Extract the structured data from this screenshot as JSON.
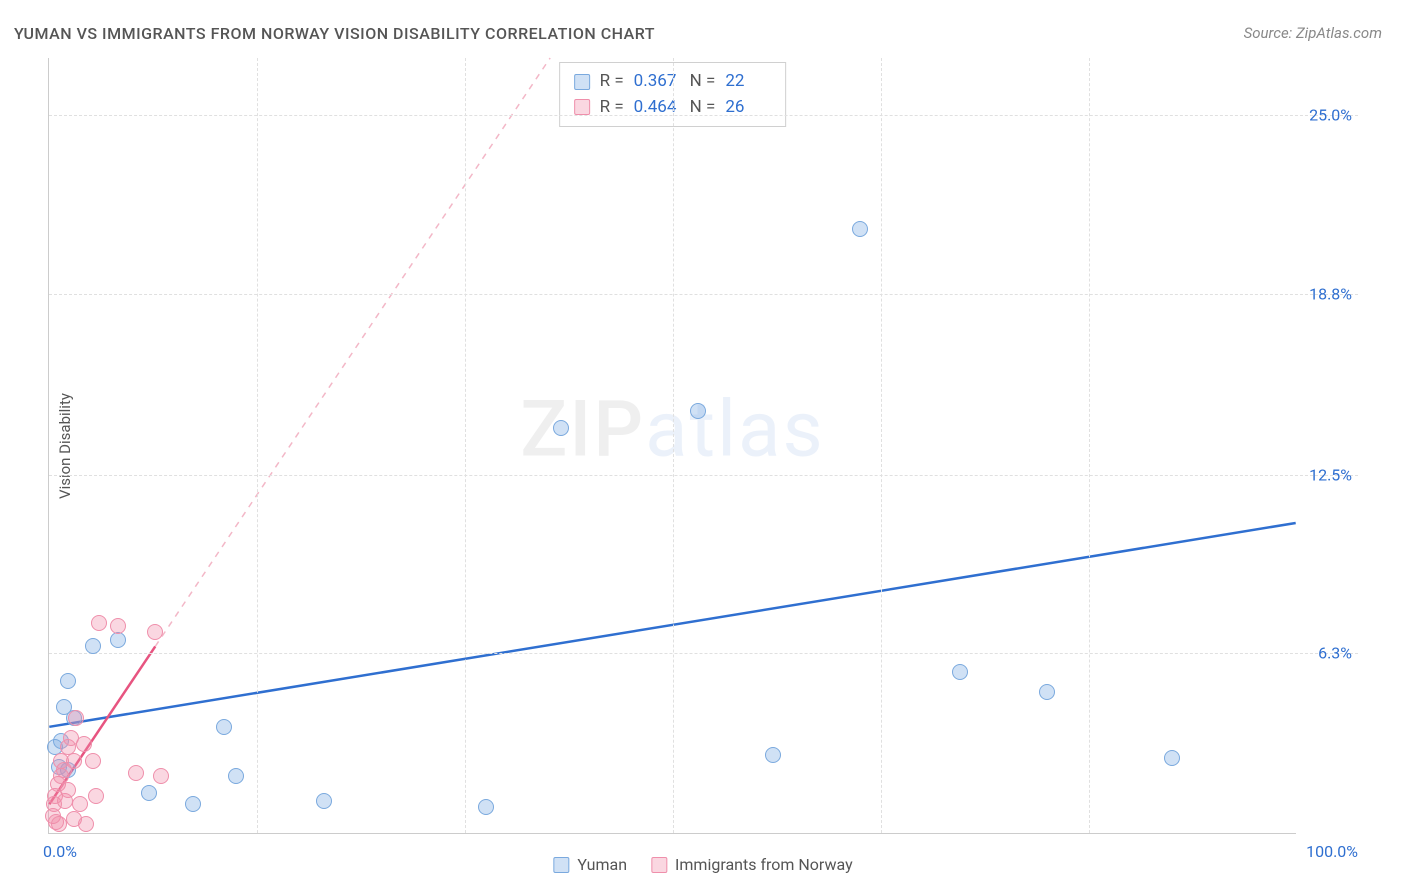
{
  "title": "YUMAN VS IMMIGRANTS FROM NORWAY VISION DISABILITY CORRELATION CHART",
  "source": "Source: ZipAtlas.com",
  "y_axis_label": "Vision Disability",
  "watermark": {
    "part1": "ZIP",
    "part2": "atlas"
  },
  "chart": {
    "type": "scatter",
    "xlim": [
      0,
      100
    ],
    "ylim": [
      0,
      27
    ],
    "x_origin_label": "0.0%",
    "x_max_label": "100.0%",
    "y_ticks": [
      {
        "v": 6.3,
        "label": "6.3%"
      },
      {
        "v": 12.5,
        "label": "12.5%"
      },
      {
        "v": 18.8,
        "label": "18.8%"
      },
      {
        "v": 25.0,
        "label": "25.0%"
      }
    ],
    "x_gridlines": [
      16.67,
      33.33,
      50,
      66.67,
      83.33
    ],
    "background_color": "#ffffff",
    "grid_color": "#e0e0e0",
    "axis_color": "#cccccc",
    "tick_label_color": "#2f6fd0",
    "text_color": "#555555",
    "point_radius": 8
  },
  "series": [
    {
      "key": "yuman",
      "label": "Yuman",
      "color_fill": "rgba(120,170,225,0.35)",
      "color_stroke": "#7aa9de",
      "trend": {
        "x1": 0,
        "y1": 3.7,
        "x2": 100,
        "y2": 10.8,
        "stroke": "#2f6fd0",
        "width": 2.5,
        "dash": ""
      },
      "stats": {
        "R": "0.367",
        "N": "22"
      },
      "points": [
        [
          0.5,
          3.0
        ],
        [
          0.8,
          2.3
        ],
        [
          1.0,
          3.2
        ],
        [
          1.2,
          4.4
        ],
        [
          1.5,
          2.2
        ],
        [
          1.5,
          5.3
        ],
        [
          2.0,
          4.0
        ],
        [
          3.5,
          6.5
        ],
        [
          5.5,
          6.7
        ],
        [
          8.0,
          1.4
        ],
        [
          11.5,
          1.0
        ],
        [
          14.0,
          3.7
        ],
        [
          15.0,
          2.0
        ],
        [
          22.0,
          1.1
        ],
        [
          35.0,
          0.9
        ],
        [
          41.0,
          14.1
        ],
        [
          52.0,
          14.7
        ],
        [
          58.0,
          2.7
        ],
        [
          65.0,
          21.0
        ],
        [
          73.0,
          5.6
        ],
        [
          80.0,
          4.9
        ],
        [
          90.0,
          2.6
        ]
      ]
    },
    {
      "key": "norway",
      "label": "Immigrants from Norway",
      "color_fill": "rgba(240,140,170,0.35)",
      "color_stroke": "#ef8fab",
      "trend": {
        "x1": 0,
        "y1": 1.0,
        "x2": 8.5,
        "y2": 6.5,
        "stroke": "#e75480",
        "width": 2.5,
        "dash": "",
        "extend_dash_to_x": 50,
        "extend_dash_color": "#f3b7c7"
      },
      "stats": {
        "R": "0.464",
        "N": "26"
      },
      "points": [
        [
          0.3,
          0.6
        ],
        [
          0.4,
          1.0
        ],
        [
          0.5,
          1.3
        ],
        [
          0.6,
          0.4
        ],
        [
          0.7,
          1.7
        ],
        [
          0.8,
          0.3
        ],
        [
          1.0,
          2.0
        ],
        [
          1.0,
          2.5
        ],
        [
          1.2,
          2.2
        ],
        [
          1.3,
          1.1
        ],
        [
          1.5,
          3.0
        ],
        [
          1.5,
          1.5
        ],
        [
          1.8,
          3.3
        ],
        [
          2.0,
          0.5
        ],
        [
          2.0,
          2.5
        ],
        [
          2.2,
          4.0
        ],
        [
          2.5,
          1.0
        ],
        [
          2.8,
          3.1
        ],
        [
          3.0,
          0.3
        ],
        [
          3.5,
          2.5
        ],
        [
          3.8,
          1.3
        ],
        [
          4.0,
          7.3
        ],
        [
          5.5,
          7.2
        ],
        [
          7.0,
          2.1
        ],
        [
          8.5,
          7.0
        ],
        [
          9.0,
          2.0
        ]
      ]
    }
  ],
  "fonts": {
    "title_size": 16,
    "source_size": 15,
    "axis_label_size": 15,
    "tick_label_size": 16,
    "legend_size": 16
  }
}
